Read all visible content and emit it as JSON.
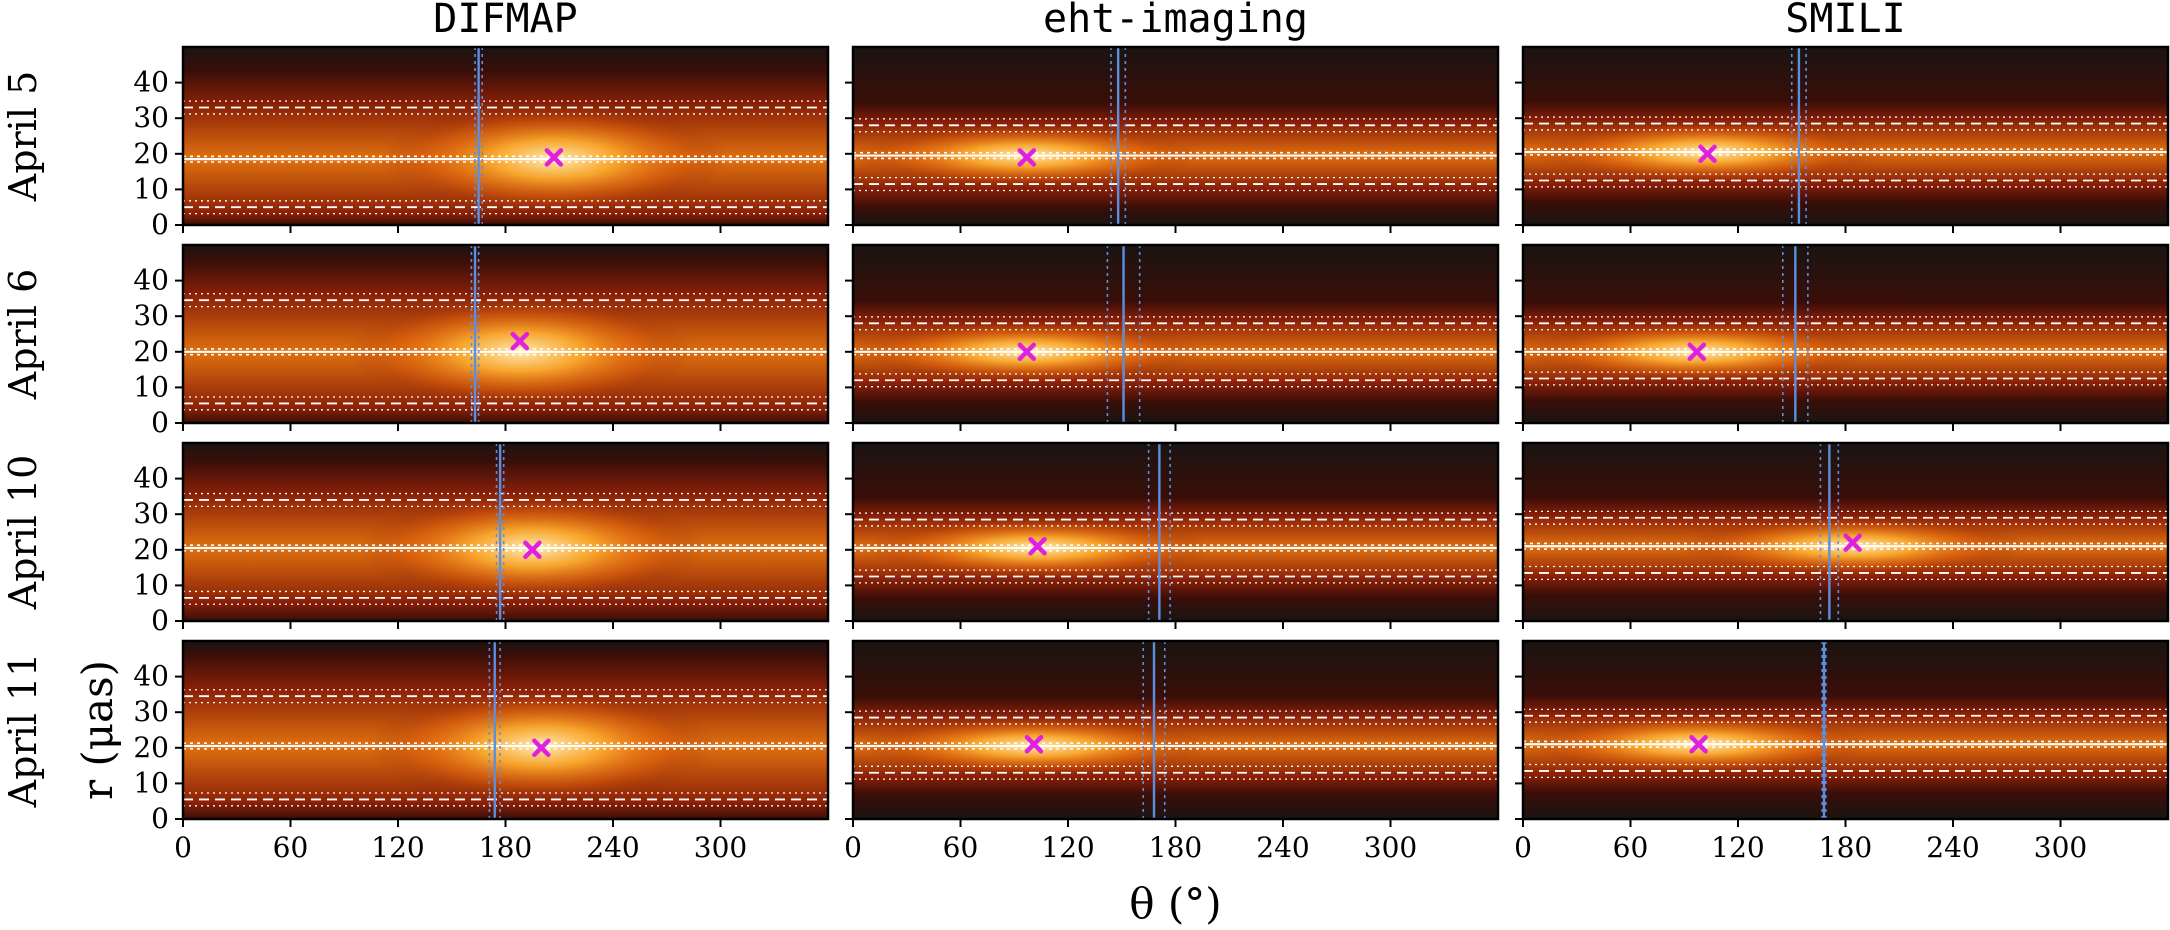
{
  "chart_data": {
    "type": "heatmap",
    "description_of_panels": "4x3 grid of r-theta unwrapped brightness maps",
    "columns": [
      "DIFMAP",
      "eht-imaging",
      "SMILI"
    ],
    "rows": [
      "April 5",
      "April 6",
      "April 10",
      "April 11"
    ],
    "xlabel": "θ (°)",
    "ylabel": "r (μas)",
    "xlim": [
      0,
      360
    ],
    "ylim": [
      0,
      50
    ],
    "xticks": [
      0,
      60,
      120,
      180,
      240,
      300
    ],
    "yticks": [
      0,
      10,
      20,
      30,
      40
    ],
    "colormap": "afmhot",
    "colors": {
      "ring_lines": "#ffffff",
      "pa_line": "#5b8fe0",
      "peak_marker": "#e020e0"
    },
    "panels": [
      {
        "column": "DIFMAP",
        "row": "April 5",
        "ring_radius": 18.5,
        "ring_inner": 5,
        "ring_outer": 33,
        "pa": 165,
        "pa_err": 2,
        "peak": [
          207,
          19
        ]
      },
      {
        "column": "eht-imaging",
        "row": "April 5",
        "ring_radius": 19.5,
        "ring_inner": 11.5,
        "ring_outer": 28,
        "pa": 148,
        "pa_err": 4,
        "peak": [
          97,
          19
        ]
      },
      {
        "column": "SMILI",
        "row": "April 5",
        "ring_radius": 20.5,
        "ring_inner": 12.5,
        "ring_outer": 28.5,
        "pa": 154,
        "pa_err": 4,
        "peak": [
          103,
          20
        ]
      },
      {
        "column": "DIFMAP",
        "row": "April 6",
        "ring_radius": 20,
        "ring_inner": 5.5,
        "ring_outer": 34.5,
        "pa": 163,
        "pa_err": 2,
        "peak": [
          188,
          23
        ]
      },
      {
        "column": "eht-imaging",
        "row": "April 6",
        "ring_radius": 20,
        "ring_inner": 12,
        "ring_outer": 28,
        "pa": 151,
        "pa_err": 9,
        "peak": [
          97,
          20
        ]
      },
      {
        "column": "SMILI",
        "row": "April 6",
        "ring_radius": 20,
        "ring_inner": 12.5,
        "ring_outer": 28,
        "pa": 152,
        "pa_err": 7,
        "peak": [
          97,
          20
        ]
      },
      {
        "column": "DIFMAP",
        "row": "April 10",
        "ring_radius": 20.5,
        "ring_inner": 6.5,
        "ring_outer": 34,
        "pa": 177,
        "pa_err": 2,
        "peak": [
          195,
          20
        ]
      },
      {
        "column": "eht-imaging",
        "row": "April 10",
        "ring_radius": 20.5,
        "ring_inner": 12.5,
        "ring_outer": 28.5,
        "pa": 171,
        "pa_err": 6,
        "peak": [
          103,
          21
        ]
      },
      {
        "column": "SMILI",
        "row": "April 10",
        "ring_radius": 21,
        "ring_inner": 13.5,
        "ring_outer": 29,
        "pa": 171,
        "pa_err": 5,
        "peak": [
          184,
          22
        ]
      },
      {
        "column": "DIFMAP",
        "row": "April 11",
        "ring_radius": 20.5,
        "ring_inner": 5.5,
        "ring_outer": 34.5,
        "pa": 174,
        "pa_err": 3,
        "peak": [
          200,
          20
        ]
      },
      {
        "column": "eht-imaging",
        "row": "April 11",
        "ring_radius": 20.5,
        "ring_inner": 13,
        "ring_outer": 28.5,
        "pa": 168,
        "pa_err": 6,
        "peak": [
          101,
          21
        ]
      },
      {
        "column": "SMILI",
        "row": "April 11",
        "ring_radius": 21,
        "ring_inner": 13.5,
        "ring_outer": 29,
        "pa": 168,
        "pa_err": 1,
        "peak": [
          98,
          21
        ]
      }
    ]
  }
}
